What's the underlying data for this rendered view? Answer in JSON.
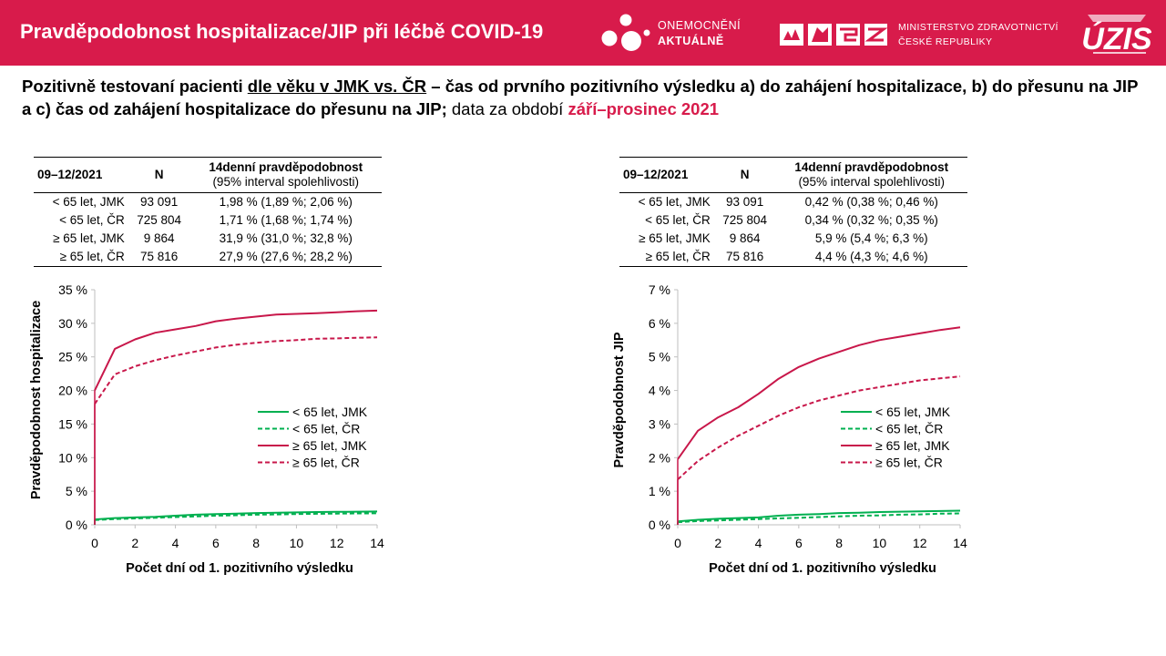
{
  "header": {
    "title": "Pravděpodobnost hospitalizace/JIP při léčbě COVID-19",
    "logo1_line1": "ONEMOCNĚNÍ",
    "logo1_line2": "AKTUÁLNĚ",
    "ministry_line1": "MINISTERSTVO ZDRAVOTNICTVÍ",
    "ministry_line2": "ČESKÉ REPUBLIKY",
    "uzis_logo": "ÚZIS"
  },
  "subtitle": {
    "p1": "Pozitivně testovaní pacienti ",
    "p2": "dle věku v JMK vs. ČR",
    "p3": " – čas od prvního pozitivního výsledku a) do zahájení hospitalizace, b) do přesunu na JIP a c) čas od zahájení hospitalizace do přesunu na JIP;",
    "p4": " data za období ",
    "p5": "září–prosinec 2021"
  },
  "tables": [
    {
      "col1": "09–12/2021",
      "col2": "N",
      "col3": "14denní pravděpodobnost",
      "col3_sub": "(95% interval spolehlivosti)",
      "rows": [
        {
          "group": "< 65 let, JMK",
          "n": "93 091",
          "p": "1,98 % (1,89 %; 2,06 %)"
        },
        {
          "group": "< 65 let, ČR",
          "n": "725 804",
          "p": "1,71 % (1,68 %; 1,74 %)"
        },
        {
          "group": "≥ 65 let, JMK",
          "n": "9 864",
          "p": "31,9 % (31,0 %; 32,8 %)"
        },
        {
          "group": "≥ 65 let, ČR",
          "n": "75 816",
          "p": "27,9 % (27,6 %; 28,2 %)"
        }
      ]
    },
    {
      "col1": "09–12/2021",
      "col2": "N",
      "col3": "14denní pravděpodobnost",
      "col3_sub": "(95% interval spolehlivosti)",
      "rows": [
        {
          "group": "< 65 let, JMK",
          "n": "93 091",
          "p": "0,42 % (0,38 %; 0,46 %)"
        },
        {
          "group": "< 65 let, ČR",
          "n": "725 804",
          "p": "0,34 % (0,32 %; 0,35 %)"
        },
        {
          "group": "≥ 65 let, JMK",
          "n": "9 864",
          "p": "5,9 % (5,4 %; 6,3 %)"
        },
        {
          "group": "≥ 65 let, ČR",
          "n": "75 816",
          "p": "4,4 % (4,3 %; 4,6 %)"
        }
      ]
    }
  ],
  "colors": {
    "header_bg": "#d81b4b",
    "young": "#00b050",
    "old": "#c8174a"
  },
  "chart_data": [
    {
      "type": "line",
      "xlabel": "Počet dní od 1. pozitivního výsledku",
      "ylabel": "Pravděpodobnost hospitalizace",
      "xlim": [
        0,
        14
      ],
      "ylim": [
        0,
        35
      ],
      "xticks": [
        0,
        2,
        4,
        6,
        8,
        10,
        12,
        14
      ],
      "yticks": [
        0,
        5,
        10,
        15,
        20,
        25,
        30,
        35
      ],
      "yticklabels": [
        "0 %",
        "5 %",
        "10 %",
        "15 %",
        "20 %",
        "25 %",
        "30 %",
        "35 %"
      ],
      "legend": "center-right",
      "grid": false,
      "x": [
        0,
        1,
        2,
        3,
        4,
        5,
        6,
        7,
        8,
        9,
        10,
        11,
        12,
        13,
        14
      ],
      "series": [
        {
          "name": "< 65 let, JMK",
          "color": "#00b050",
          "dash": false,
          "values": [
            0.8,
            1.0,
            1.1,
            1.2,
            1.35,
            1.5,
            1.6,
            1.65,
            1.75,
            1.8,
            1.85,
            1.9,
            1.92,
            1.95,
            1.98
          ]
        },
        {
          "name": "< 65 let, ČR",
          "color": "#00b050",
          "dash": true,
          "values": [
            0.7,
            0.85,
            0.95,
            1.05,
            1.15,
            1.25,
            1.35,
            1.42,
            1.5,
            1.55,
            1.6,
            1.64,
            1.67,
            1.69,
            1.71
          ]
        },
        {
          "name": "≥ 65 let, JMK",
          "color": "#c8174a",
          "dash": false,
          "values": [
            20.0,
            26.2,
            27.6,
            28.6,
            29.1,
            29.6,
            30.3,
            30.7,
            31.0,
            31.3,
            31.4,
            31.5,
            31.65,
            31.8,
            31.9
          ]
        },
        {
          "name": "≥ 65 let, ČR",
          "color": "#c8174a",
          "dash": true,
          "values": [
            18.0,
            22.4,
            23.6,
            24.5,
            25.2,
            25.8,
            26.4,
            26.8,
            27.1,
            27.35,
            27.5,
            27.7,
            27.75,
            27.85,
            27.9
          ]
        }
      ]
    },
    {
      "type": "line",
      "xlabel": "Počet dní od 1. pozitivního výsledku",
      "ylabel": "Pravděpodobnost JIP",
      "xlim": [
        0,
        14
      ],
      "ylim": [
        0,
        7
      ],
      "xticks": [
        0,
        2,
        4,
        6,
        8,
        10,
        12,
        14
      ],
      "yticks": [
        0,
        1,
        2,
        3,
        4,
        5,
        6,
        7
      ],
      "yticklabels": [
        "0 %",
        "1 %",
        "2 %",
        "3 %",
        "4 %",
        "5 %",
        "6 %",
        "7 %"
      ],
      "legend": "center-right",
      "grid": false,
      "x": [
        0,
        1,
        2,
        3,
        4,
        5,
        6,
        7,
        8,
        9,
        10,
        11,
        12,
        13,
        14
      ],
      "series": [
        {
          "name": "< 65 let, JMK",
          "color": "#00b050",
          "dash": false,
          "values": [
            0.1,
            0.15,
            0.18,
            0.2,
            0.22,
            0.27,
            0.3,
            0.32,
            0.35,
            0.36,
            0.38,
            0.39,
            0.4,
            0.41,
            0.42
          ]
        },
        {
          "name": "< 65 let, ČR",
          "color": "#00b050",
          "dash": true,
          "values": [
            0.08,
            0.11,
            0.13,
            0.15,
            0.17,
            0.19,
            0.21,
            0.23,
            0.25,
            0.27,
            0.28,
            0.3,
            0.31,
            0.33,
            0.34
          ]
        },
        {
          "name": "≥ 65 let, JMK",
          "color": "#c8174a",
          "dash": false,
          "values": [
            1.95,
            2.8,
            3.2,
            3.5,
            3.9,
            4.35,
            4.7,
            4.95,
            5.15,
            5.35,
            5.5,
            5.6,
            5.7,
            5.8,
            5.88
          ]
        },
        {
          "name": "≥ 65 let, ČR",
          "color": "#c8174a",
          "dash": true,
          "values": [
            1.35,
            1.9,
            2.3,
            2.65,
            2.95,
            3.25,
            3.5,
            3.7,
            3.85,
            4.0,
            4.1,
            4.2,
            4.3,
            4.36,
            4.42
          ]
        }
      ]
    }
  ]
}
